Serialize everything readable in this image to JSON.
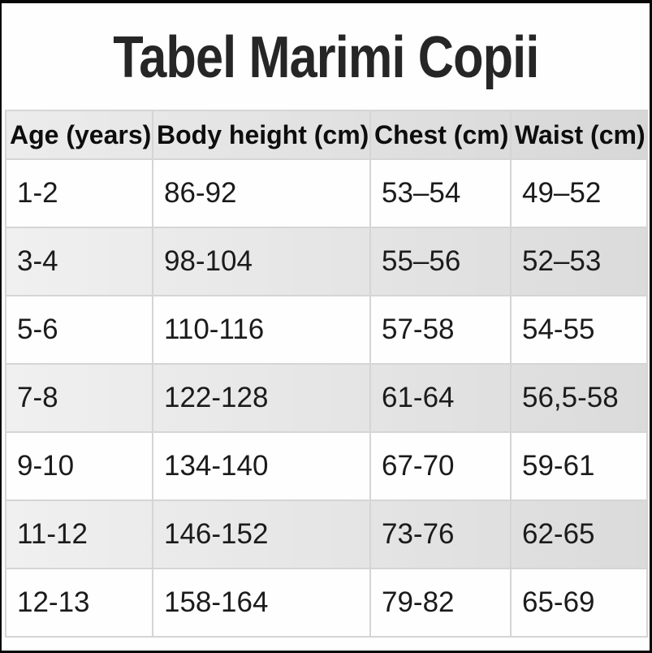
{
  "page_title": "Tabel Marimi Copii",
  "chart_data": {
    "type": "table",
    "title": "Tabel Marimi Copii",
    "columns": [
      "Age (years)",
      "Body height (cm)",
      "Chest (cm)",
      "Waist (cm)"
    ],
    "rows": [
      [
        "1-2",
        "86-92",
        "53–54",
        "49–52"
      ],
      [
        "3-4",
        "98-104",
        "55–56",
        "52–53"
      ],
      [
        "5-6",
        "110-116",
        "57-58",
        "54-55"
      ],
      [
        "7-8",
        "122-128",
        "61-64",
        "56,5-58"
      ],
      [
        "9-10",
        "134-140",
        "67-70",
        "59-61"
      ],
      [
        "11-12",
        "146-152",
        "73-76",
        "62-65"
      ],
      [
        "12-13",
        "158-164",
        "79-82",
        "65-69"
      ]
    ],
    "layout_hints": {
      "header_shaded": true,
      "zebra_striping": "even rows shaded gray",
      "grid": true
    }
  },
  "colors": {
    "frame": "#070707",
    "header_bg_left": "#ececec",
    "header_bg_right": "#d7d7d7",
    "zebra_bg_left": "#f0f0f0",
    "zebra_bg_right": "#dbdbdb",
    "row_white": "#fefefe",
    "grid_line": "#d5d5d5",
    "title_text": "#262626",
    "header_text": "#0d0d0d",
    "cell_text": "#1b1b1b"
  }
}
